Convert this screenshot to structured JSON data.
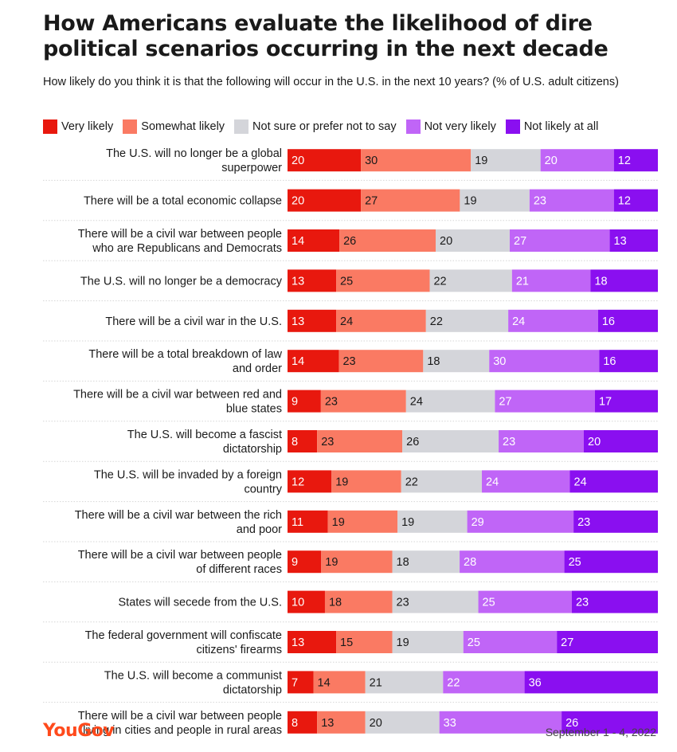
{
  "header": {
    "title": "How Americans evaluate the likelihood of dire political scenarios occurring in the next decade",
    "subtitle": "How likely do you think it is that the following will occur in the U.S. in the next 10 years? (% of U.S. adult citizens)"
  },
  "footer": {
    "brand": "YouGov",
    "date": "September 1 - 4, 2022"
  },
  "chart_data": {
    "type": "bar",
    "orientation": "horizontal",
    "stacked": true,
    "title": "How Americans evaluate the likelihood of dire political scenarios occurring in the next decade",
    "subtitle": "How likely do you think it is that the following will occur in the U.S. in the next 10 years? (% of U.S. adult citizens)",
    "legend_position": "top-left",
    "categories": [
      [
        "The U.S. will no longer be a global",
        "superpower"
      ],
      [
        "There will be a total economic collapse"
      ],
      [
        "There will be a civil war between people",
        "who are Republicans and Democrats"
      ],
      [
        "The U.S. will no longer be a democracy"
      ],
      [
        "There will be a civil war in the U.S."
      ],
      [
        "There will be a total breakdown of law",
        "and order"
      ],
      [
        "There will be a civil war between red and",
        "blue states"
      ],
      [
        "The U.S. will become a fascist",
        "dictatorship"
      ],
      [
        "The U.S. will be invaded by a foreign",
        "country"
      ],
      [
        "There will be a civil war between the rich",
        "and poor"
      ],
      [
        "There will be a civil war between people",
        "of different races"
      ],
      [
        "States will secede from the U.S."
      ],
      [
        "The federal government will confiscate",
        "citizens' firearms"
      ],
      [
        "The U.S. will become a communist",
        "dictatorship"
      ],
      [
        "There will be a civil war between people",
        "living in cities and people in rural areas"
      ]
    ],
    "series": [
      {
        "name": "Very likely",
        "color": "#e8180e",
        "label_color": "#ffffff",
        "values": [
          20,
          20,
          14,
          13,
          13,
          14,
          9,
          8,
          12,
          11,
          9,
          10,
          13,
          7,
          8
        ]
      },
      {
        "name": "Somewhat likely",
        "color": "#fa7a63",
        "label_color": "#1a1a1a",
        "values": [
          30,
          27,
          26,
          25,
          24,
          23,
          23,
          23,
          19,
          19,
          19,
          18,
          15,
          14,
          13
        ]
      },
      {
        "name": "Not sure or prefer not to say",
        "color": "#d4d5da",
        "label_color": "#1a1a1a",
        "values": [
          19,
          19,
          20,
          22,
          22,
          18,
          24,
          26,
          22,
          19,
          18,
          23,
          19,
          21,
          20
        ]
      },
      {
        "name": "Not very likely",
        "color": "#c065f7",
        "label_color": "#ffffff",
        "values": [
          20,
          23,
          27,
          21,
          24,
          30,
          27,
          23,
          24,
          29,
          28,
          25,
          25,
          22,
          33
        ]
      },
      {
        "name": "Not likely at all",
        "color": "#8a0ff0",
        "label_color": "#ffffff",
        "values": [
          12,
          12,
          13,
          18,
          16,
          16,
          17,
          20,
          24,
          23,
          25,
          23,
          27,
          36,
          26
        ]
      }
    ]
  }
}
